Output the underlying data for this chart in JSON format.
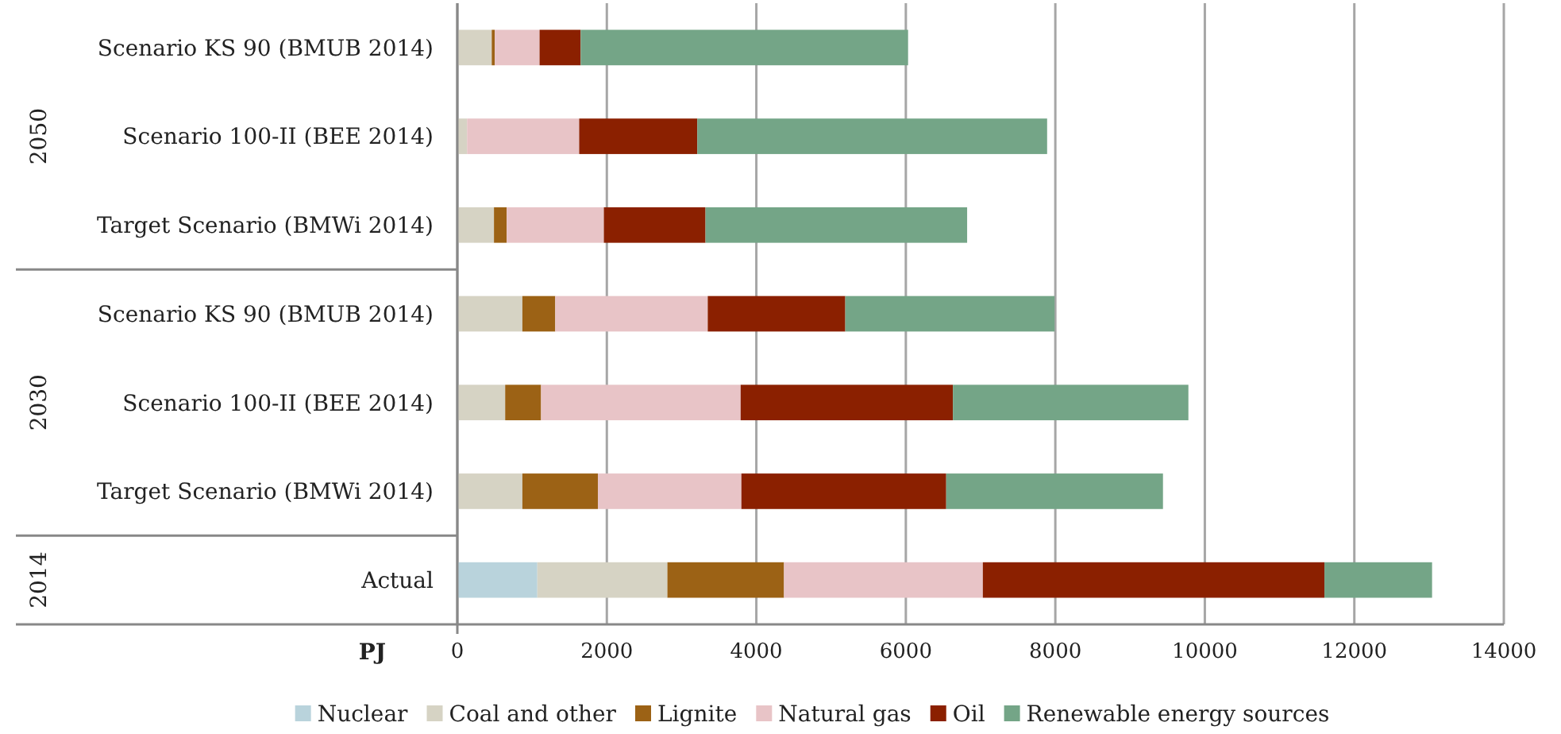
{
  "chart_data": {
    "type": "bar",
    "orientation": "horizontal",
    "stacked": true,
    "categories": [
      "Scenario KS 90 (BMUB 2014)",
      "Scenario 100-II (BEE 2014)",
      "Target Scenario (BMWi 2014)",
      "Scenario KS 90 (BMUB 2014)",
      "Scenario 100-II (BEE 2014)",
      "Target Scenario (BMWi 2014)",
      "Actual"
    ],
    "series": [
      {
        "name": "Nuclear",
        "color": "#b9d3dc",
        "values": [
          0,
          0,
          0,
          0,
          0,
          0,
          1070
        ]
      },
      {
        "name": "Coal and other",
        "color": "#d6d3c4",
        "values": [
          460,
          130,
          490,
          870,
          640,
          870,
          1740
        ]
      },
      {
        "name": "Lignite",
        "color": "#9c6215",
        "values": [
          40,
          0,
          170,
          440,
          480,
          1010,
          1560
        ]
      },
      {
        "name": "Natural gas",
        "color": "#e8c4c7",
        "values": [
          600,
          1500,
          1300,
          2040,
          2670,
          1920,
          2660
        ]
      },
      {
        "name": "Oil",
        "color": "#8b2000",
        "values": [
          550,
          1580,
          1360,
          1840,
          2840,
          2740,
          4570
        ]
      },
      {
        "name": "Renewable energy sources",
        "color": "#74a587",
        "values": [
          4380,
          4680,
          3500,
          2800,
          3150,
          2900,
          1440
        ]
      }
    ],
    "xlabel": "PJ",
    "xlim": [
      0,
      14000
    ],
    "xticks": [
      0,
      2000,
      4000,
      6000,
      8000,
      10000,
      12000,
      14000
    ],
    "grid": "x",
    "legend": "bottom",
    "annotations": [
      "2050",
      "2030",
      "2014"
    ]
  }
}
